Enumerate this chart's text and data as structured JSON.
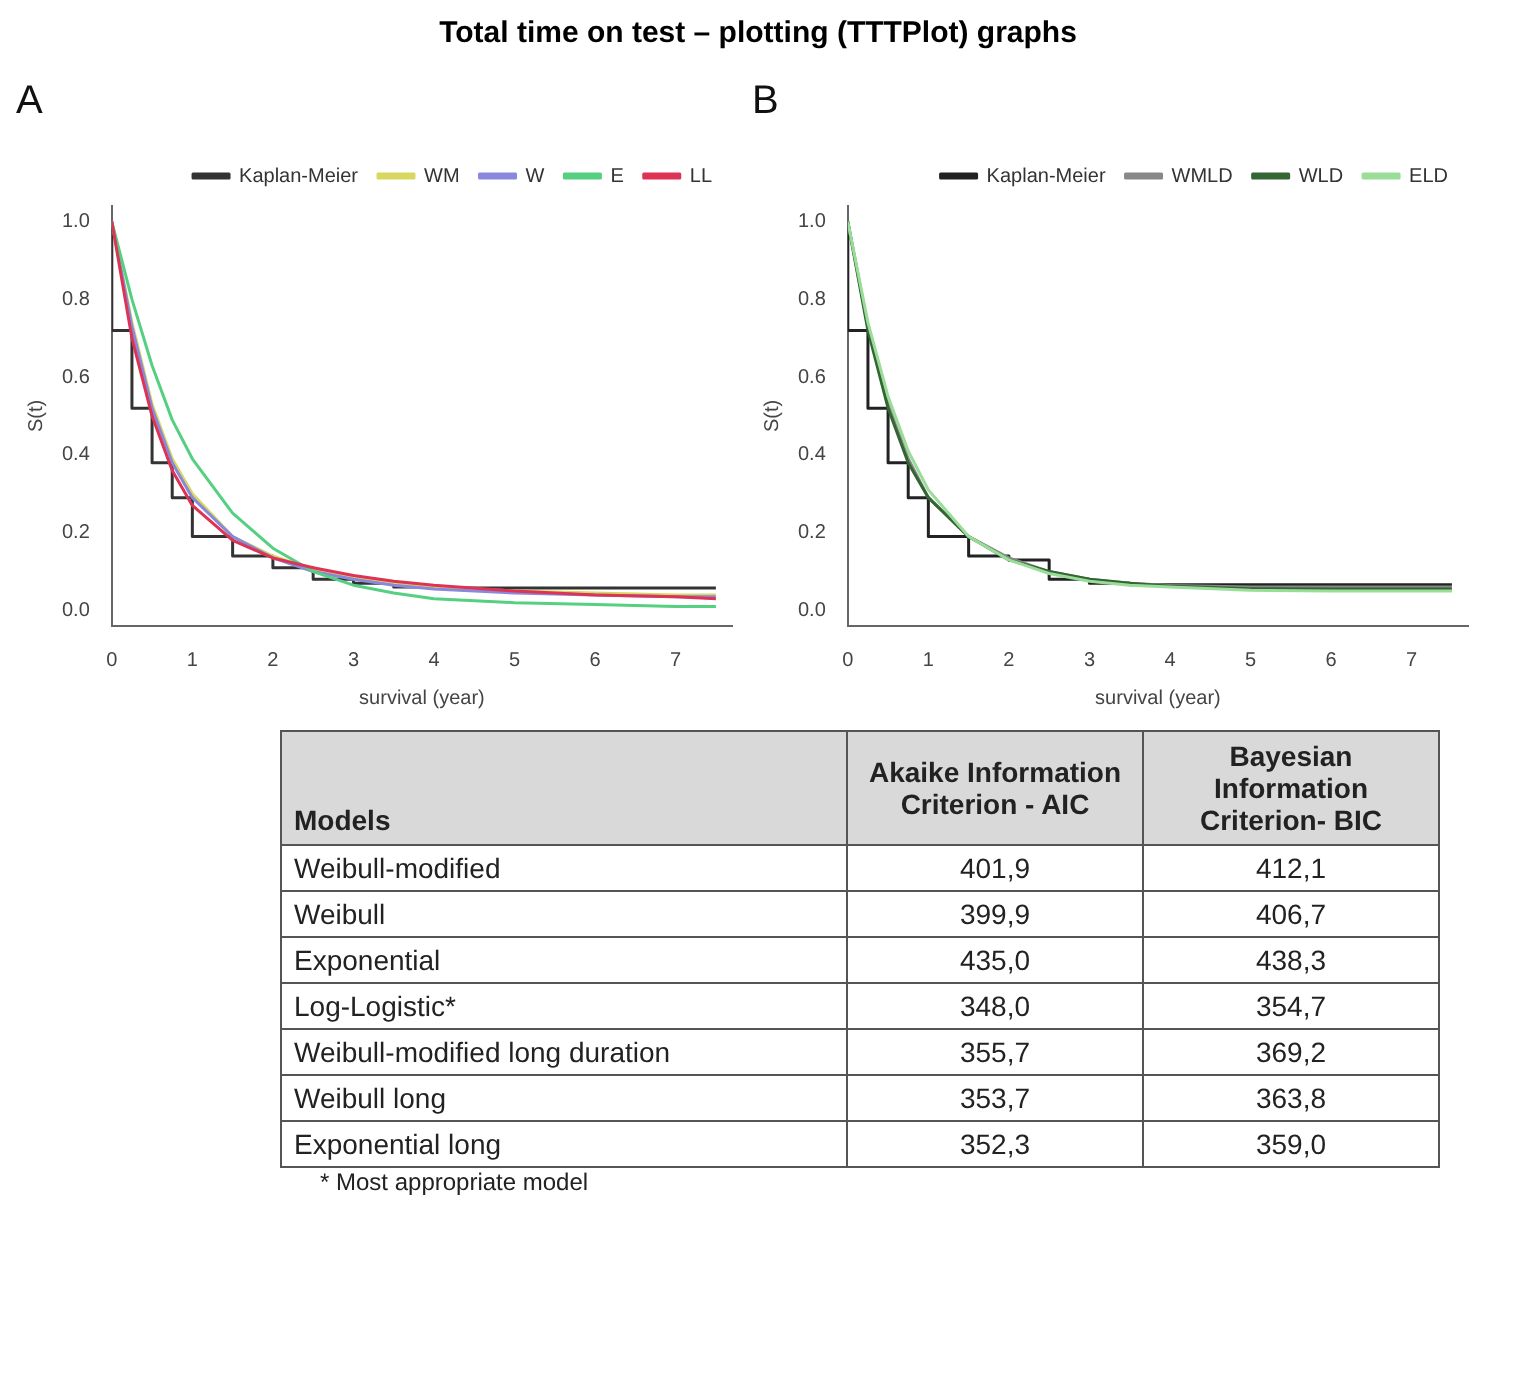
{
  "chart_data": [
    {
      "type": "line",
      "title": "A",
      "annotations": [
        "Total time on test – plotting (TTTPlot) graphs"
      ],
      "xlabel": "survival (year)",
      "ylabel": "S(t)",
      "x": [
        0,
        0.25,
        0.5,
        0.75,
        1,
        1.5,
        2,
        2.5,
        3,
        3.5,
        4,
        5,
        6,
        7,
        7.5
      ],
      "series": [
        {
          "name": "Kaplan-Meier",
          "type": "step",
          "color": "#333333",
          "values": [
            1.0,
            0.72,
            0.52,
            0.38,
            0.29,
            0.19,
            0.14,
            0.11,
            0.08,
            0.07,
            0.06,
            0.058,
            0.058,
            0.058,
            0.058
          ]
        },
        {
          "name": "WM",
          "color": "#d8d860",
          "values": [
            1.0,
            0.74,
            0.53,
            0.39,
            0.3,
            0.19,
            0.14,
            0.105,
            0.085,
            0.07,
            0.06,
            0.05,
            0.045,
            0.04,
            0.04
          ]
        },
        {
          "name": "W",
          "color": "#8888dd",
          "values": [
            1.0,
            0.73,
            0.52,
            0.38,
            0.29,
            0.19,
            0.135,
            0.1,
            0.08,
            0.065,
            0.055,
            0.045,
            0.04,
            0.035,
            0.035
          ]
        },
        {
          "name": "E",
          "color": "#55d080",
          "values": [
            1.0,
            0.8,
            0.63,
            0.49,
            0.39,
            0.25,
            0.16,
            0.1,
            0.065,
            0.045,
            0.03,
            0.02,
            0.015,
            0.01,
            0.01
          ]
        },
        {
          "name": "LL",
          "color": "#dd3355",
          "values": [
            1.0,
            0.7,
            0.5,
            0.36,
            0.27,
            0.18,
            0.135,
            0.11,
            0.09,
            0.075,
            0.065,
            0.05,
            0.04,
            0.035,
            0.03
          ]
        }
      ],
      "xlim": [
        0,
        7.7
      ],
      "xticks": [
        0,
        1,
        2,
        3,
        4,
        5,
        6,
        7
      ],
      "ylim": [
        -0.04,
        1.04
      ],
      "yticks": [
        {
          "value": 0,
          "label": "0.0"
        },
        {
          "value": 0.2,
          "label": "0.2"
        },
        {
          "value": 0.4,
          "label": "0.4"
        },
        {
          "value": 0.6,
          "label": "0.6"
        },
        {
          "value": 0.8,
          "label": "0.8"
        },
        {
          "value": 1,
          "label": "1.0"
        }
      ],
      "legend": "top right"
    },
    {
      "type": "line",
      "title": "B",
      "xlabel": "survival (year)",
      "ylabel": "S(t)",
      "x": [
        0,
        0.25,
        0.5,
        0.75,
        1,
        1.5,
        2,
        2.5,
        3,
        3.5,
        4,
        5,
        6,
        7,
        7.5
      ],
      "series": [
        {
          "name": "Kaplan-Meier",
          "type": "step",
          "color": "#222222",
          "values": [
            1.0,
            0.72,
            0.52,
            0.38,
            0.29,
            0.19,
            0.14,
            0.13,
            0.08,
            0.07,
            0.066,
            0.066,
            0.066,
            0.066,
            0.066
          ]
        },
        {
          "name": "WMLD",
          "color": "#888888",
          "values": [
            1.0,
            0.73,
            0.53,
            0.39,
            0.29,
            0.19,
            0.135,
            0.1,
            0.08,
            0.07,
            0.064,
            0.06,
            0.06,
            0.06,
            0.06
          ]
        },
        {
          "name": "WLD",
          "color": "#336633",
          "values": [
            1.0,
            0.72,
            0.52,
            0.38,
            0.29,
            0.19,
            0.13,
            0.1,
            0.08,
            0.07,
            0.062,
            0.056,
            0.055,
            0.055,
            0.055
          ]
        },
        {
          "name": "ELD",
          "color": "#99dd99",
          "values": [
            1.0,
            0.74,
            0.55,
            0.41,
            0.31,
            0.19,
            0.13,
            0.095,
            0.075,
            0.065,
            0.06,
            0.052,
            0.05,
            0.05,
            0.05
          ]
        }
      ],
      "xlim": [
        0,
        7.7
      ],
      "xticks": [
        0,
        1,
        2,
        3,
        4,
        5,
        6,
        7
      ],
      "ylim": [
        -0.04,
        1.04
      ],
      "yticks": [
        {
          "value": 0,
          "label": "0.0"
        },
        {
          "value": 0.2,
          "label": "0.2"
        },
        {
          "value": 0.4,
          "label": "0.4"
        },
        {
          "value": 0.6,
          "label": "0.6"
        },
        {
          "value": 0.8,
          "label": "0.8"
        },
        {
          "value": 1,
          "label": "1.0"
        }
      ],
      "legend": "top right"
    },
    {
      "type": "other",
      "annotations": [
        "Models",
        "Akaike Information Criterion - AIC",
        "Bayesian Information Criterion-  BIC",
        "Weibull-modified",
        "401,9",
        "412,1",
        "Weibull",
        "399,9",
        "406,7",
        "Exponential",
        "435,0",
        "438,3",
        "Log-Logistic*",
        "348,0",
        "354,7",
        "Weibull-modified long duration",
        "355,7",
        "369,2",
        "Weibull long",
        "353,7",
        "363,8",
        "Exponential long",
        "352,3",
        "359,0",
        "* Most appropriate model"
      ]
    }
  ]
}
